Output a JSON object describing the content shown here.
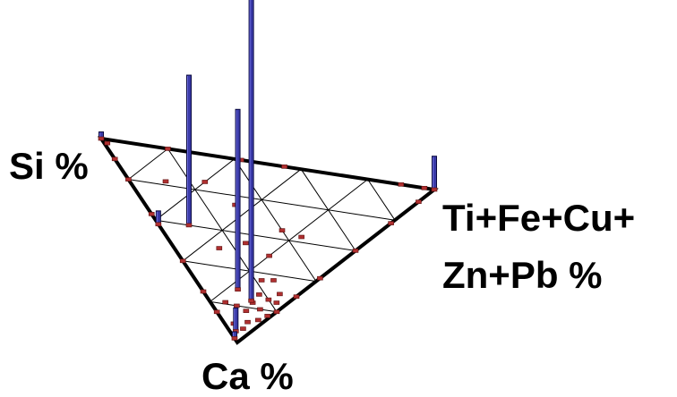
{
  "chart_data": {
    "type": "ternary-3d-histogram",
    "title": "",
    "vertices": {
      "si": "Si %",
      "ti_line1": "Ti+Fe+Cu+",
      "ti_line2": "Zn+Pb %",
      "ca": "Ca %"
    },
    "grid_divisions": 5,
    "grid": true,
    "colors": {
      "bar": "#3a3aa8",
      "bar_edge": "#0a0a40",
      "marker": "#b03030",
      "frame": "#000000"
    },
    "bars": [
      {
        "si": 0.1,
        "ti": 0.14,
        "ca": 0.76,
        "height": 1.0
      },
      {
        "si": 0.5,
        "ti": 0.1,
        "ca": 0.4,
        "height": 0.45
      },
      {
        "si": 0.17,
        "ti": 0.12,
        "ca": 0.71,
        "height": 0.54
      },
      {
        "si": 0.04,
        "ti": 0.02,
        "ca": 0.94,
        "height": 0.07
      },
      {
        "si": 0.58,
        "ti": 0.0,
        "ca": 0.42,
        "height": 0.04
      },
      {
        "si": 0.0,
        "ti": 1.0,
        "ca": 0.0,
        "height": 0.1
      },
      {
        "si": 1.0,
        "ti": 0.0,
        "ca": 0.0,
        "height": 0.02
      },
      {
        "si": 0.02,
        "ti": 0.0,
        "ca": 0.98,
        "height": 0.02
      }
    ],
    "points": [
      {
        "si": 0.97,
        "ti": 0.01,
        "ca": 0.02
      },
      {
        "si": 0.9,
        "ti": 0.0,
        "ca": 0.1
      },
      {
        "si": 0.8,
        "ti": 0.0,
        "ca": 0.2
      },
      {
        "si": 0.63,
        "ti": 0.0,
        "ca": 0.37
      },
      {
        "si": 0.4,
        "ti": 0.0,
        "ca": 0.6
      },
      {
        "si": 0.25,
        "ti": 0.0,
        "ca": 0.75
      },
      {
        "si": 0.15,
        "ti": 0.0,
        "ca": 0.85
      },
      {
        "si": 0.8,
        "ti": 0.2,
        "ca": 0.0
      },
      {
        "si": 0.58,
        "ti": 0.42,
        "ca": 0.0
      },
      {
        "si": 0.45,
        "ti": 0.55,
        "ca": 0.0
      },
      {
        "si": 0.1,
        "ti": 0.9,
        "ca": 0.0
      },
      {
        "si": 0.03,
        "ti": 0.97,
        "ca": 0.0
      },
      {
        "si": 0.0,
        "ti": 0.92,
        "ca": 0.08
      },
      {
        "si": 0.0,
        "ti": 0.78,
        "ca": 0.22
      },
      {
        "si": 0.0,
        "ti": 0.6,
        "ca": 0.4
      },
      {
        "si": 0.0,
        "ti": 0.42,
        "ca": 0.58
      },
      {
        "si": 0.0,
        "ti": 0.3,
        "ca": 0.7
      },
      {
        "si": 0.0,
        "ti": 0.2,
        "ca": 0.8
      },
      {
        "si": 0.02,
        "ti": 0.12,
        "ca": 0.86
      },
      {
        "si": 0.05,
        "ti": 0.15,
        "ca": 0.8
      },
      {
        "si": 0.04,
        "ti": 0.08,
        "ca": 0.88
      },
      {
        "si": 0.08,
        "ti": 0.1,
        "ca": 0.82
      },
      {
        "si": 0.06,
        "ti": 0.2,
        "ca": 0.74
      },
      {
        "si": 0.03,
        "ti": 0.05,
        "ca": 0.92
      },
      {
        "si": 0.1,
        "ti": 0.18,
        "ca": 0.72
      },
      {
        "si": 0.07,
        "ti": 0.03,
        "ca": 0.9
      },
      {
        "si": 0.12,
        "ti": 0.08,
        "ca": 0.8
      },
      {
        "si": 0.05,
        "ti": 0.25,
        "ca": 0.7
      },
      {
        "si": 0.09,
        "ti": 0.14,
        "ca": 0.77
      },
      {
        "si": 0.01,
        "ti": 0.16,
        "ca": 0.83
      },
      {
        "si": 0.14,
        "ti": 0.22,
        "ca": 0.64
      },
      {
        "si": 0.16,
        "ti": 0.05,
        "ca": 0.79
      },
      {
        "si": 0.03,
        "ti": 0.22,
        "ca": 0.75
      },
      {
        "si": 0.11,
        "ti": 0.26,
        "ca": 0.63
      },
      {
        "si": 0.2,
        "ti": 0.3,
        "ca": 0.5
      },
      {
        "si": 0.35,
        "ti": 0.15,
        "ca": 0.5
      },
      {
        "si": 0.45,
        "ti": 0.3,
        "ca": 0.25
      },
      {
        "si": 0.6,
        "ti": 0.25,
        "ca": 0.15
      },
      {
        "si": 0.7,
        "ti": 0.12,
        "ca": 0.18
      },
      {
        "si": 0.25,
        "ti": 0.4,
        "ca": 0.35
      },
      {
        "si": 0.3,
        "ti": 0.25,
        "ca": 0.45
      },
      {
        "si": 0.18,
        "ti": 0.45,
        "ca": 0.37
      }
    ]
  }
}
